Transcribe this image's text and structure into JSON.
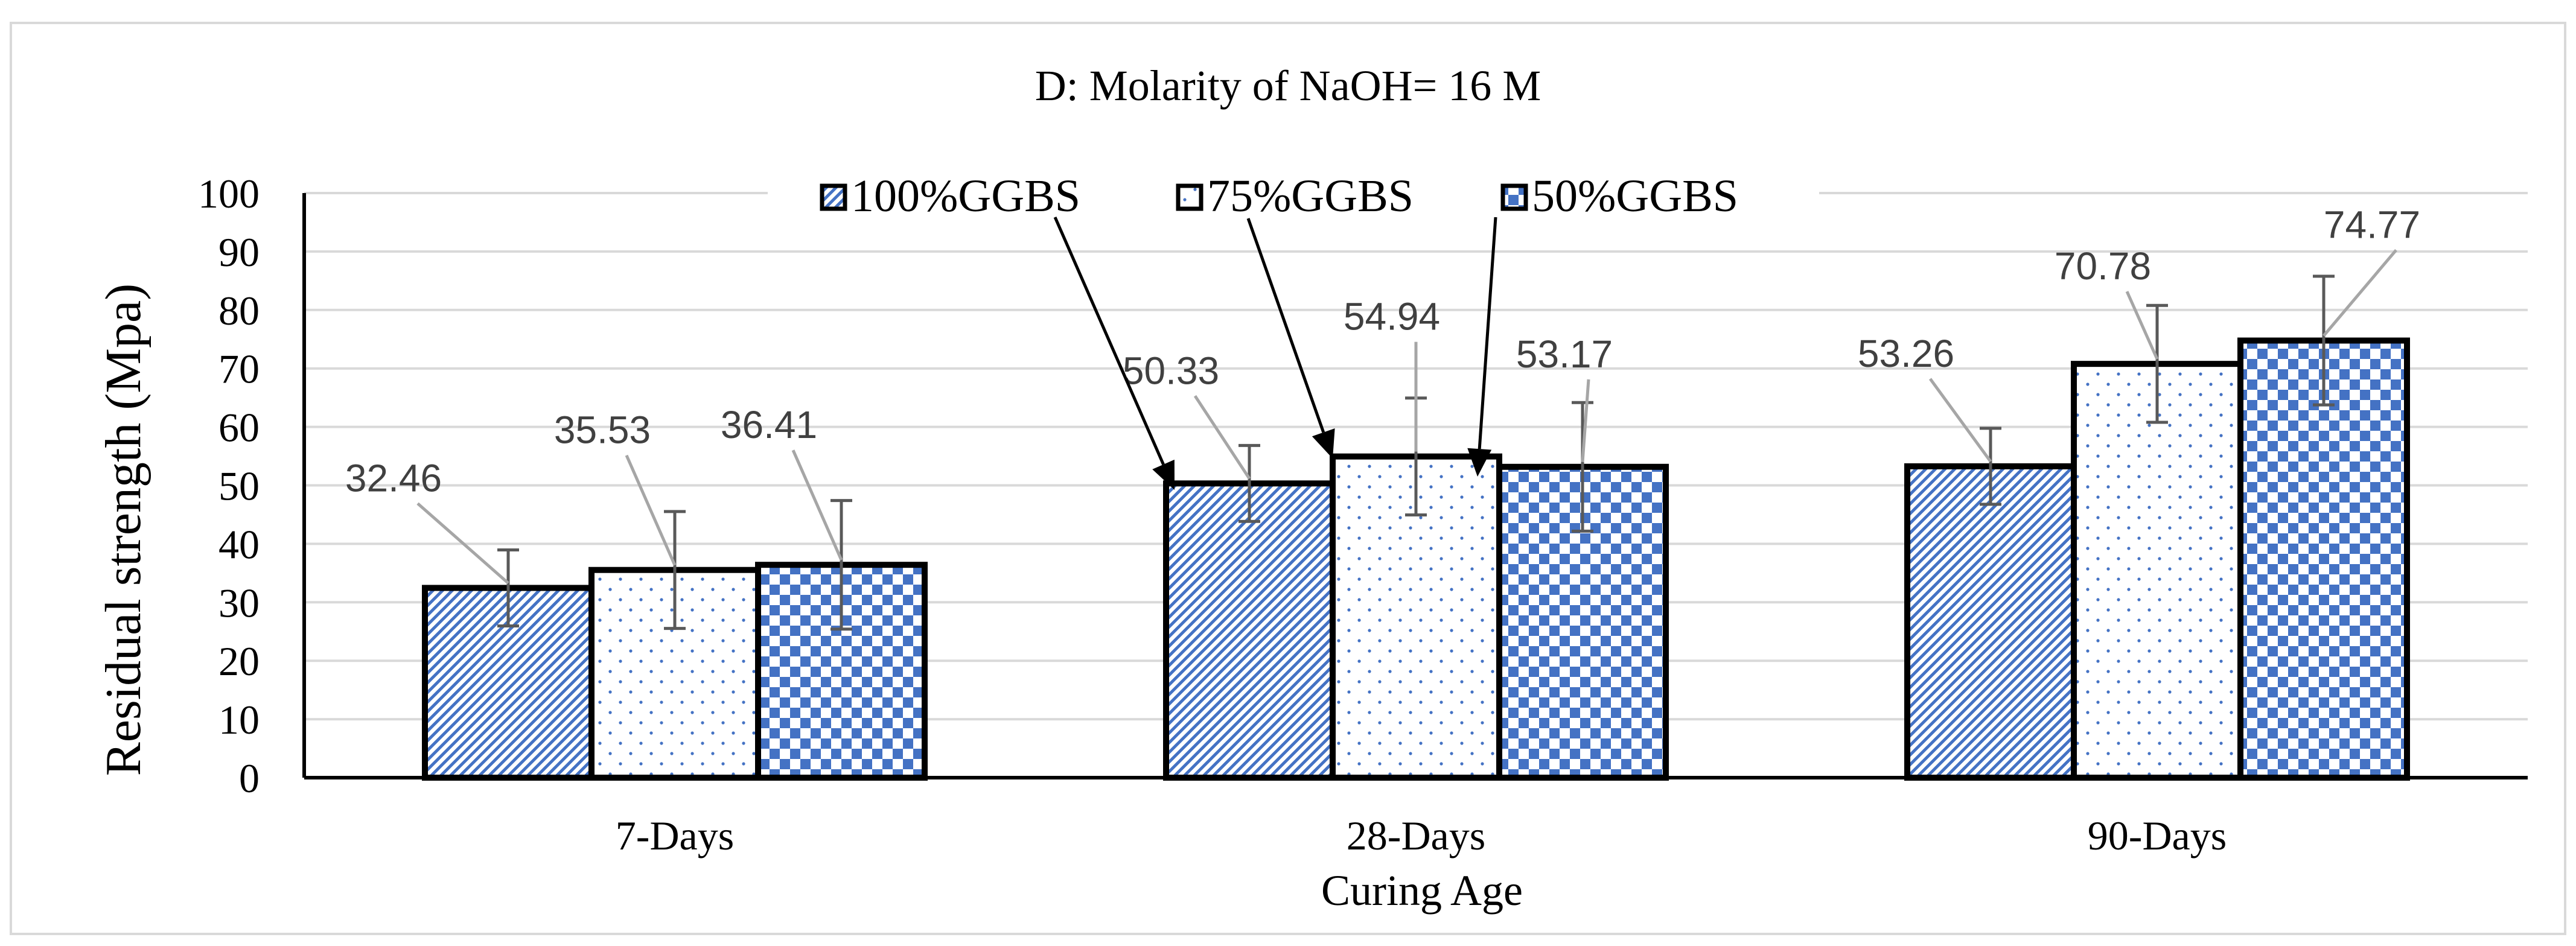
{
  "chart_data": {
    "type": "bar",
    "title": "D: Molarity of NaOH= 16 M",
    "xlabel": "Curing Age",
    "ylabel": "Residual strength (Mpa)",
    "ylim": [
      0,
      100
    ],
    "yticks": [
      "0",
      "10",
      "20",
      "30",
      "40",
      "50",
      "60",
      "70",
      "80",
      "90",
      "100"
    ],
    "categories": [
      "7-Days",
      "28-Days",
      "90-Days"
    ],
    "grid": true,
    "legend_position": "top",
    "series": [
      {
        "name": "100%GGBS",
        "values": [
          32.46,
          50.33,
          53.26
        ],
        "labels": [
          "32.46",
          "50.33",
          "53.26"
        ],
        "error": [
          6.5,
          6.5,
          6.5
        ],
        "pattern": "diagonal-stripes",
        "color": "#4472c4"
      },
      {
        "name": "75%GGBS",
        "values": [
          35.53,
          54.94,
          70.78
        ],
        "labels": [
          "35.53",
          "54.94",
          "70.78"
        ],
        "error": [
          10,
          10,
          10
        ],
        "pattern": "dots",
        "color": "#4472c4"
      },
      {
        "name": "50%GGBS",
        "values": [
          36.41,
          53.17,
          74.77
        ],
        "labels": [
          "36.41",
          "53.17",
          "74.77"
        ],
        "error": [
          11,
          11,
          11
        ],
        "pattern": "checkerboard",
        "color": "#4472c4"
      }
    ]
  }
}
